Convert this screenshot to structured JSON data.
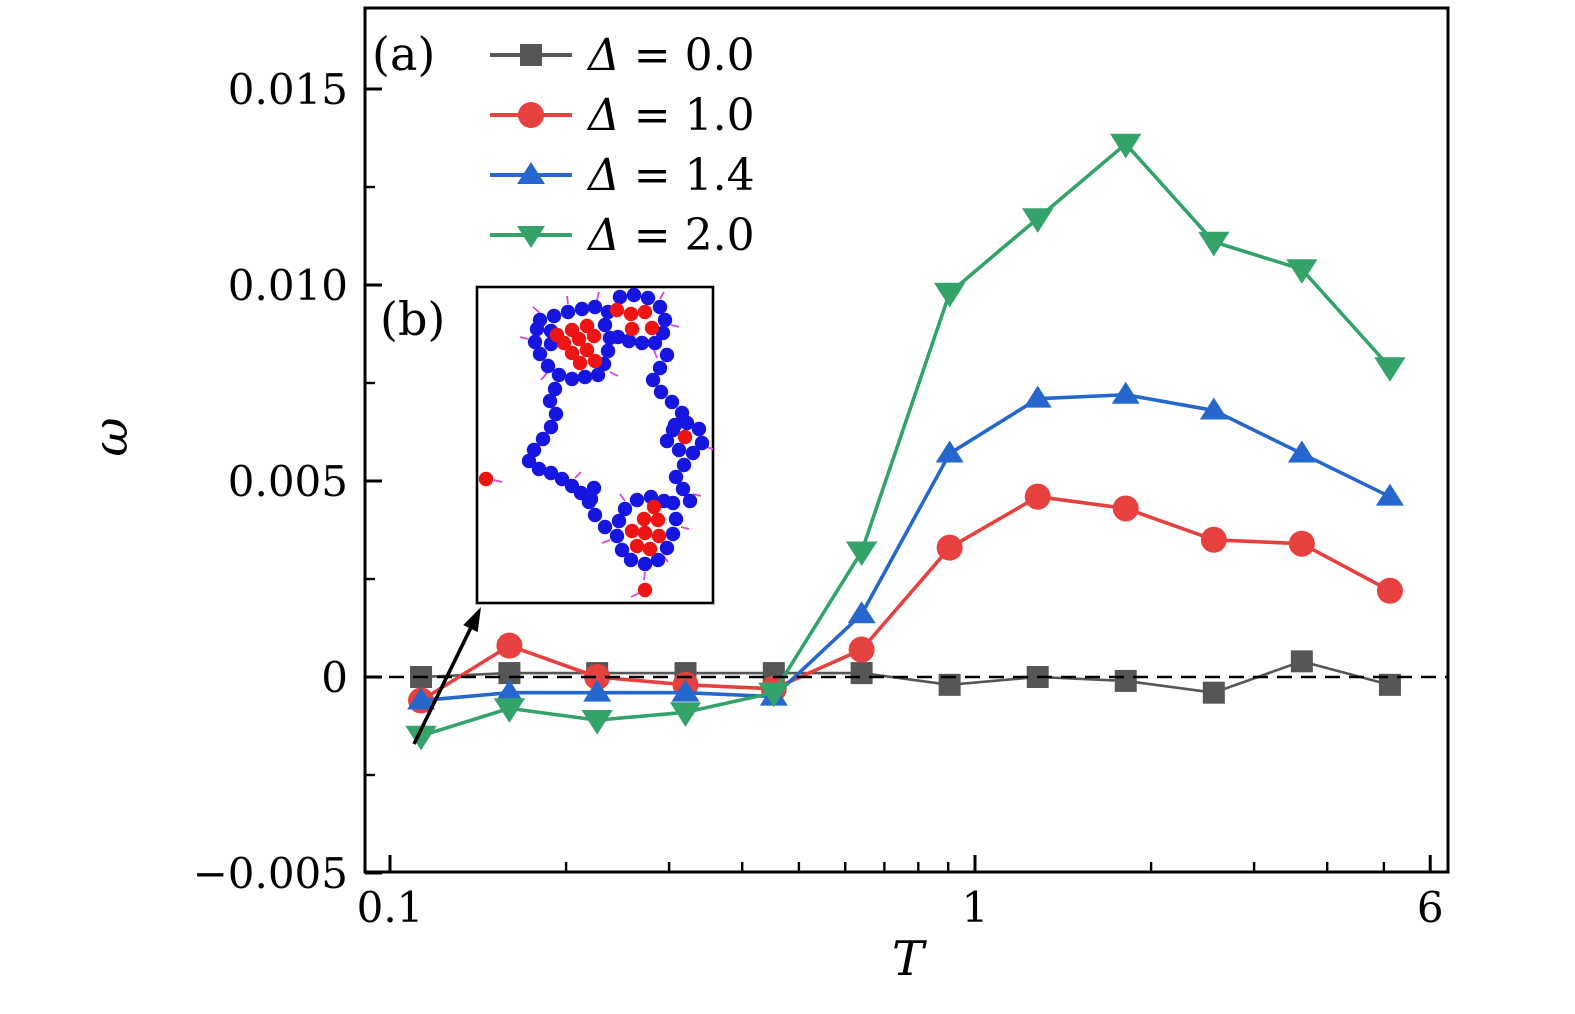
{
  "figure": {
    "background": "#ffffff"
  },
  "panel_labels": {
    "a": "(a)",
    "b": "(b)"
  },
  "axes": {
    "xlabel": "T",
    "ylabel": "ω"
  },
  "chart_data": {
    "type": "line",
    "title": "",
    "xlabel": "T",
    "ylabel": "ω",
    "x_scale": "log",
    "xlim": [
      0.09,
      6.43
    ],
    "ylim": [
      -0.005,
      0.0171
    ],
    "grid": false,
    "legend_position": "upper-left",
    "x": [
      0.113,
      0.16,
      0.226,
      0.32,
      0.453,
      0.64,
      0.905,
      1.28,
      1.81,
      2.56,
      3.62,
      5.12
    ],
    "series": [
      {
        "name": "Δ = 0.0",
        "color": "#565658",
        "marker": "square",
        "values": [
          0.0,
          0.0001,
          0.0001,
          0.0001,
          0.0001,
          0.0001,
          -0.0002,
          0.0,
          -0.0001,
          -0.0004,
          0.0004,
          -0.0002
        ]
      },
      {
        "name": "Δ = 1.0",
        "color": "#e6413e",
        "marker": "circle",
        "values": [
          -0.0006,
          0.0008,
          0.0,
          -0.0002,
          -0.0003,
          0.0007,
          0.0033,
          0.0046,
          0.0043,
          0.0035,
          0.0034,
          0.0022
        ]
      },
      {
        "name": "Δ = 1.4",
        "color": "#2567cc",
        "marker": "triangle-up",
        "values": [
          -0.0006,
          -0.0004,
          -0.0004,
          -0.0004,
          -0.0005,
          0.0016,
          0.0057,
          0.0071,
          0.0072,
          0.0068,
          0.0057,
          0.0046
        ]
      },
      {
        "name": "Δ = 2.0",
        "color": "#34a369",
        "marker": "triangle-down",
        "values": [
          -0.0015,
          -0.0008,
          -0.0011,
          -0.0009,
          -0.0004,
          0.0032,
          0.0098,
          0.0117,
          0.0136,
          0.0111,
          0.0104,
          0.0079
        ]
      }
    ],
    "x_major_ticks": [
      {
        "v": 0.1,
        "label": "0.1"
      },
      {
        "v": 1,
        "label": "1"
      },
      {
        "v": 6,
        "label": "6"
      }
    ],
    "x_minor_ticks": [
      0.2,
      0.3,
      0.4,
      0.5,
      0.6,
      0.7,
      0.8,
      0.9,
      2,
      3,
      4,
      5
    ],
    "y_major_ticks": [
      {
        "v": -0.005,
        "label": "−0.005"
      },
      {
        "v": 0,
        "label": "0"
      },
      {
        "v": 0.005,
        "label": "0.005"
      },
      {
        "v": 0.01,
        "label": "0.010"
      },
      {
        "v": 0.015,
        "label": "0.015"
      }
    ],
    "y_minor_ticks": [
      -0.0025,
      0.0025,
      0.0075,
      0.0125
    ],
    "zero_line": {
      "value": 0,
      "style": "dashed",
      "color": "#000000"
    }
  },
  "inset": {
    "label": "(b)",
    "border_color": "#000000",
    "background": "#ffffff",
    "particle_radius": 7.2,
    "colors": {
      "blue": "#1616e0",
      "red": "#ee1414",
      "orientation": "#dd44dd"
    },
    "blue_particles": [
      [
        63,
        33
      ],
      [
        77,
        29
      ],
      [
        91,
        25
      ],
      [
        105,
        22
      ],
      [
        118,
        20
      ],
      [
        131,
        25
      ],
      [
        128,
        38
      ],
      [
        133,
        51
      ],
      [
        131,
        64
      ],
      [
        127,
        77
      ],
      [
        121,
        88
      ],
      [
        108,
        90
      ],
      [
        95,
        92
      ],
      [
        82,
        88
      ],
      [
        71,
        79
      ],
      [
        63,
        67
      ],
      [
        58,
        55
      ],
      [
        60,
        42
      ],
      [
        74,
        57
      ],
      [
        74,
        44
      ],
      [
        143,
        10
      ],
      [
        157,
        8
      ],
      [
        171,
        11
      ],
      [
        183,
        20
      ],
      [
        188,
        33
      ],
      [
        186,
        46
      ],
      [
        178,
        56
      ],
      [
        165,
        56
      ],
      [
        152,
        54
      ],
      [
        141,
        50
      ],
      [
        190,
        68
      ],
      [
        183,
        81
      ],
      [
        176,
        93
      ],
      [
        184,
        105
      ],
      [
        195,
        115
      ],
      [
        205,
        126
      ],
      [
        198,
        138
      ],
      [
        196,
        143
      ],
      [
        210,
        136
      ],
      [
        222,
        142
      ],
      [
        225,
        156
      ],
      [
        216,
        166
      ],
      [
        202,
        163
      ],
      [
        190,
        154
      ],
      [
        207,
        178
      ],
      [
        199,
        190
      ],
      [
        206,
        202
      ],
      [
        213,
        214
      ],
      [
        196,
        216
      ],
      [
        187,
        214
      ],
      [
        174,
        210
      ],
      [
        160,
        213
      ],
      [
        148,
        222
      ],
      [
        142,
        234
      ],
      [
        140,
        249
      ],
      [
        145,
        263
      ],
      [
        154,
        273
      ],
      [
        168,
        277
      ],
      [
        181,
        273
      ],
      [
        190,
        261
      ],
      [
        196,
        247
      ],
      [
        199,
        232
      ],
      [
        128,
        240
      ],
      [
        118,
        228
      ],
      [
        112,
        215
      ],
      [
        117,
        201
      ],
      [
        78,
        102
      ],
      [
        73,
        114
      ],
      [
        79,
        127
      ],
      [
        74,
        140
      ],
      [
        66,
        152
      ],
      [
        57,
        163
      ],
      [
        52,
        174
      ],
      [
        62,
        182
      ],
      [
        74,
        186
      ],
      [
        85,
        192
      ],
      [
        95,
        199
      ],
      [
        104,
        206
      ],
      [
        114,
        212
      ]
    ],
    "red_particles": [
      [
        80,
        48
      ],
      [
        95,
        43
      ],
      [
        110,
        39
      ],
      [
        87,
        56
      ],
      [
        102,
        52
      ],
      [
        117,
        49
      ],
      [
        95,
        66
      ],
      [
        110,
        63
      ],
      [
        103,
        76
      ],
      [
        118,
        74
      ],
      [
        140,
        23
      ],
      [
        154,
        27
      ],
      [
        168,
        25
      ],
      [
        155,
        42
      ],
      [
        175,
        41
      ],
      [
        208,
        150
      ],
      [
        177,
        220
      ],
      [
        167,
        232
      ],
      [
        181,
        233
      ],
      [
        155,
        244
      ],
      [
        168,
        246
      ],
      [
        182,
        249
      ],
      [
        160,
        259
      ],
      [
        173,
        262
      ],
      [
        9,
        192
      ],
      [
        168,
        303
      ]
    ],
    "orientation_ticks": [
      [
        63,
        26,
        56,
        20
      ],
      [
        91,
        17,
        90,
        9
      ],
      [
        120,
        13,
        122,
        5
      ],
      [
        183,
        12,
        187,
        5
      ],
      [
        194,
        38,
        202,
        40
      ],
      [
        177,
        63,
        180,
        71
      ],
      [
        51,
        52,
        43,
        50
      ],
      [
        70,
        86,
        64,
        93
      ],
      [
        133,
        85,
        141,
        89
      ],
      [
        60,
        157,
        52,
        159
      ],
      [
        17,
        193,
        25,
        195
      ],
      [
        98,
        191,
        104,
        185
      ],
      [
        133,
        253,
        125,
        256
      ],
      [
        204,
        240,
        212,
        242
      ],
      [
        168,
        285,
        167,
        293
      ],
      [
        162,
        306,
        154,
        310
      ],
      [
        230,
        160,
        238,
        163
      ],
      [
        216,
        207,
        224,
        209
      ],
      [
        148,
        214,
        143,
        207
      ],
      [
        186,
        268,
        191,
        275
      ]
    ]
  },
  "annotation_arrow": {
    "from": [
      414,
      744
    ],
    "to": [
      481,
      607
    ],
    "color": "#000000"
  }
}
